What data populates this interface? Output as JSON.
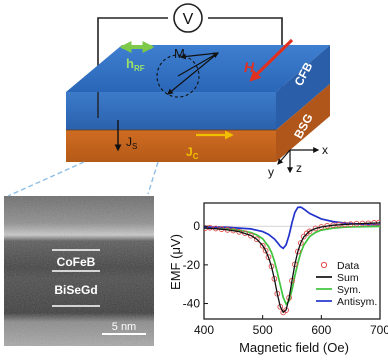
{
  "device": {
    "voltmeter": "V",
    "rf_field": "h",
    "rf_field_sub": "RF",
    "magnetization": "M",
    "dc_field": "H",
    "top_layer": "CFB",
    "bottom_layer": "BSG",
    "spin_current": "J",
    "spin_current_sub": "S",
    "charge_current": "J",
    "charge_current_sub": "C",
    "axis_x": "x",
    "axis_y": "y",
    "axis_z": "z"
  },
  "micrograph": {
    "layer_top": "CoFeB",
    "layer_bottom": "BiSeGd",
    "scale_bar": "5 nm"
  },
  "colors": {
    "cfb": "#2f6fbf",
    "bsg": "#c8651e",
    "rf_arrow": "#7ec84a",
    "h_arrow": "#e03020",
    "jc_arrow": "#f0c000"
  },
  "chart_data": {
    "type": "line",
    "xlabel": "Magnetic field (Oe)",
    "ylabel": "EMF (μV)",
    "xlim": [
      400,
      700
    ],
    "ylim": [
      -48,
      12
    ],
    "xticks": [
      "400",
      "500",
      "600",
      "700"
    ],
    "yticks": [
      "0",
      "-20",
      "-40"
    ],
    "legend_position": "bottom-right",
    "series": [
      {
        "name": "Data",
        "style": "circles",
        "color": "#e04a4a",
        "x": [
          402,
          410,
          420,
          430,
          440,
          450,
          460,
          470,
          480,
          490,
          500,
          505,
          510,
          515,
          520,
          525,
          530,
          535,
          540,
          545,
          550,
          555,
          560,
          565,
          570,
          575,
          580,
          590,
          600,
          610,
          620,
          630,
          640,
          650,
          660,
          670,
          680,
          690,
          698
        ],
        "y": [
          -1.0,
          -0.8,
          -1.2,
          -1.5,
          -1.9,
          -2.2,
          -2.9,
          -3.6,
          -4.9,
          -6.7,
          -10.1,
          -12.6,
          -16.0,
          -20.8,
          -27.2,
          -34.9,
          -41.7,
          -44.6,
          -43.4,
          -37.0,
          -28.2,
          -19.7,
          -13.1,
          -8.7,
          -5.4,
          -3.7,
          -2.7,
          -1.2,
          -0.4,
          0.2,
          0.5,
          0.8,
          0.9,
          1.1,
          1.3,
          1.4,
          1.5,
          1.7,
          1.8
        ]
      },
      {
        "name": "Sum",
        "style": "line",
        "color": "#111111",
        "x": [
          400,
          420,
          440,
          460,
          480,
          490,
          500,
          505,
          510,
          515,
          520,
          525,
          530,
          535,
          540,
          545,
          550,
          555,
          560,
          565,
          570,
          580,
          590,
          600,
          620,
          640,
          660,
          680,
          700
        ],
        "y": [
          -1.0,
          -1.3,
          -1.9,
          -2.8,
          -4.8,
          -6.7,
          -10.0,
          -12.6,
          -16.1,
          -20.9,
          -27.3,
          -35.0,
          -41.6,
          -44.5,
          -43.3,
          -37.1,
          -28.2,
          -19.6,
          -13.0,
          -8.6,
          -5.6,
          -2.6,
          -1.2,
          -0.4,
          0.5,
          0.9,
          1.2,
          1.5,
          1.7
        ]
      },
      {
        "name": "Sym.",
        "style": "line",
        "color": "#3ec43e",
        "x": [
          400,
          420,
          440,
          460,
          480,
          490,
          500,
          510,
          515,
          520,
          525,
          530,
          535,
          540,
          545,
          550,
          555,
          560,
          565,
          570,
          580,
          590,
          600,
          620,
          640,
          660,
          680,
          700
        ],
        "y": [
          -0.6,
          -0.9,
          -1.3,
          -2.0,
          -3.3,
          -4.5,
          -6.5,
          -10.5,
          -13.6,
          -18.0,
          -23.8,
          -30.5,
          -36.8,
          -40.3,
          -38.6,
          -32.9,
          -25.6,
          -19.0,
          -13.7,
          -9.9,
          -5.4,
          -3.2,
          -2.0,
          -1.0,
          -0.5,
          -0.3,
          -0.2,
          -0.1
        ]
      },
      {
        "name": "Antisym.",
        "style": "line",
        "color": "#2233cc",
        "x": [
          400,
          440,
          480,
          500,
          510,
          520,
          525,
          530,
          535,
          540,
          545,
          550,
          555,
          560,
          565,
          570,
          580,
          600,
          620,
          640,
          660,
          680,
          700
        ],
        "y": [
          -0.4,
          -0.6,
          -1.4,
          -2.8,
          -4.2,
          -6.6,
          -8.4,
          -10.4,
          -11.5,
          -9.6,
          -4.6,
          1.8,
          7.2,
          9.8,
          9.9,
          8.9,
          6.6,
          3.8,
          2.4,
          1.6,
          1.2,
          0.9,
          0.8
        ]
      }
    ]
  }
}
